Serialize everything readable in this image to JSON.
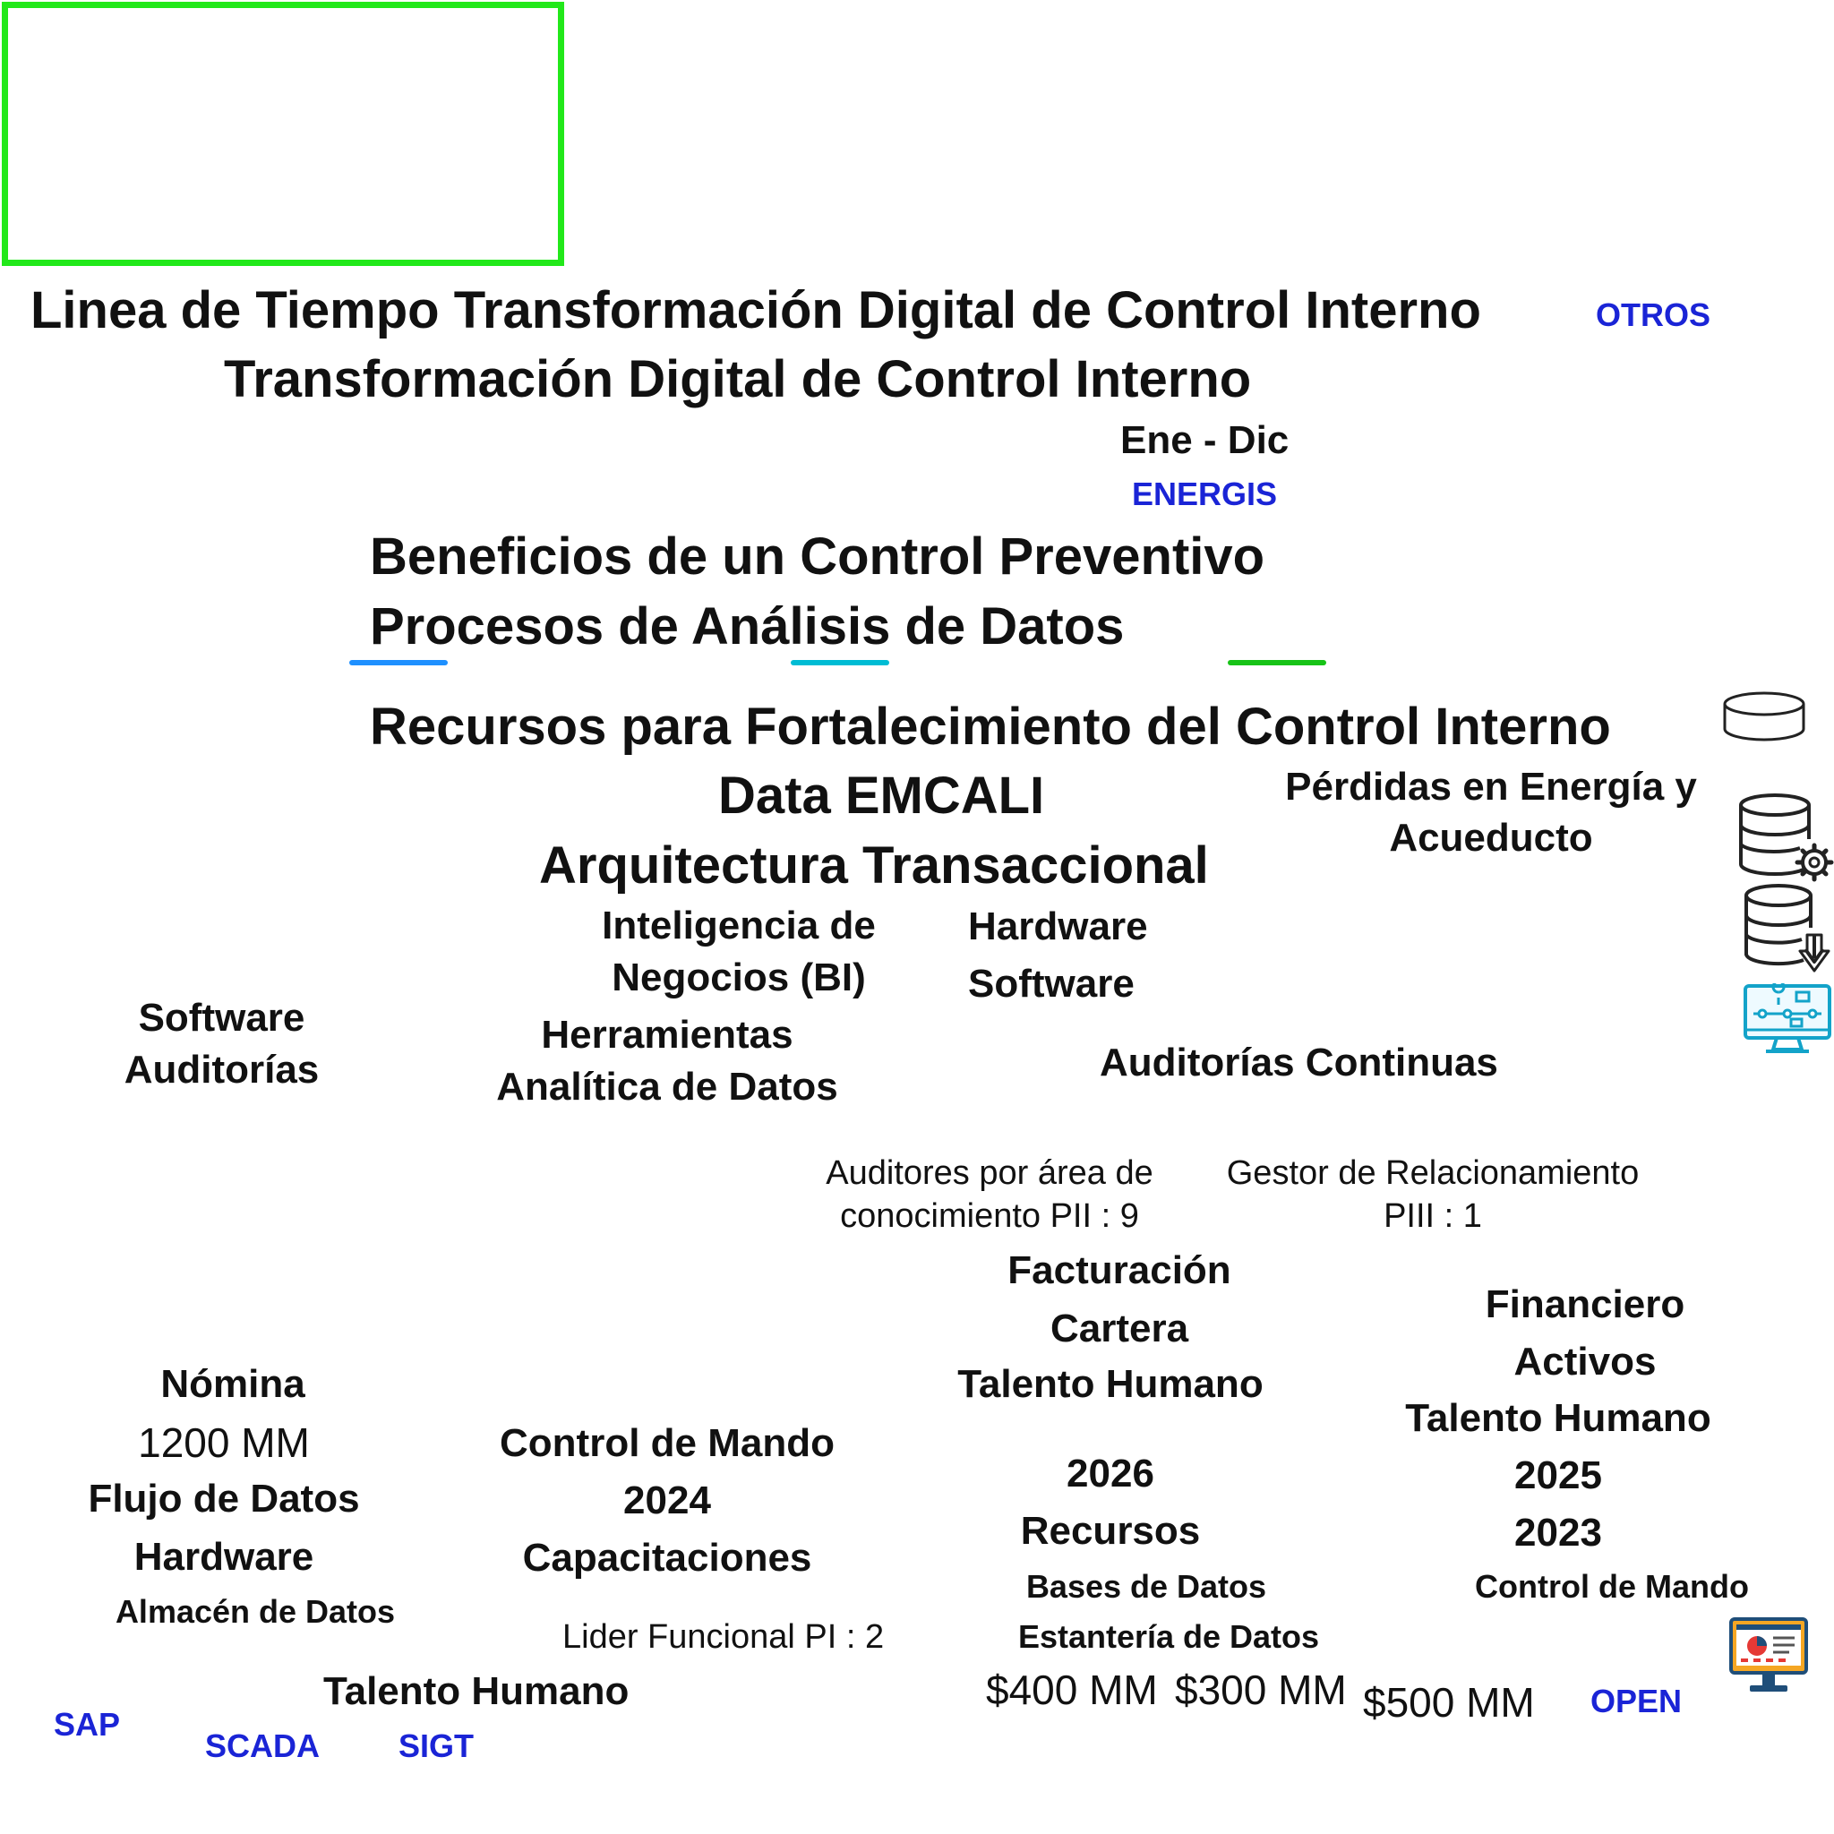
{
  "titles": {
    "main": "Linea de Tiempo Transformación Digital de Control Interno",
    "sub": "Transformación Digital de Control Interno",
    "period": "Ene - Dic"
  },
  "tags": {
    "otros": "OTROS",
    "energis": "ENERGIS",
    "sap": "SAP",
    "scada": "SCADA",
    "sigt": "SIGT",
    "open": "OPEN"
  },
  "headings": {
    "beneficios": "Beneficios de un Control Preventivo",
    "procesos": "Procesos de Análisis de Datos",
    "recursos": "Recursos para Fortalecimiento del Control Interno",
    "data": "Data EMCALI",
    "arquitectura": "Arquitectura Transaccional"
  },
  "perdidas": [
    "Pérdidas en Energía y",
    "Acueducto"
  ],
  "bi": [
    "Inteligencia de",
    "Negocios (BI)"
  ],
  "hw_sw": [
    "Hardware",
    "Software"
  ],
  "herramientas": [
    "Herramientas",
    "Analítica de Datos"
  ],
  "software_auditorias": [
    "Software",
    "Auditorías"
  ],
  "auditorias_continuas": "Auditorías Continuas",
  "auditores": [
    "Auditores por área de",
    "conocimiento PII : 9"
  ],
  "gestor": [
    "Gestor de Relacionamiento",
    "PIII : 1"
  ],
  "col_left": {
    "nomina": "Nómina",
    "amount": "1200 MM",
    "flujo": "Flujo de Datos",
    "hardware": "Hardware",
    "almacen": "Almacén de Datos"
  },
  "col_mid": {
    "control": "Control de Mando",
    "year": "2024",
    "capacitaciones": "Capacitaciones",
    "lider": "Lider Funcional PI : 2",
    "talento": "Talento Humano"
  },
  "col_2026": {
    "facturacion": "Facturación",
    "cartera": "Cartera",
    "talento": "Talento Humano",
    "year": "2026",
    "recursos": "Recursos",
    "bases": "Bases de Datos",
    "estanteria": "Estantería de Datos",
    "amount_a": "$400 MM",
    "amount_b": "$300 MM"
  },
  "col_2025": {
    "financiero": "Financiero",
    "activos": "Activos",
    "talento": "Talento Humano",
    "year_a": "2025",
    "year_b": "2023",
    "control": "Control de Mando",
    "amount": "$500 MM"
  },
  "colors": {
    "frame": "#22e81a",
    "line_1": "#1e90ff",
    "line_2": "#00bcd4",
    "line_3": "#17c317",
    "tag_blue": "#1a24d6",
    "icon_teal": "#13a3c9"
  },
  "icons": [
    "database-icon",
    "database-settings-icon",
    "database-download-icon",
    "monitor-flowchart-icon",
    "monitor-dashboard-icon"
  ]
}
